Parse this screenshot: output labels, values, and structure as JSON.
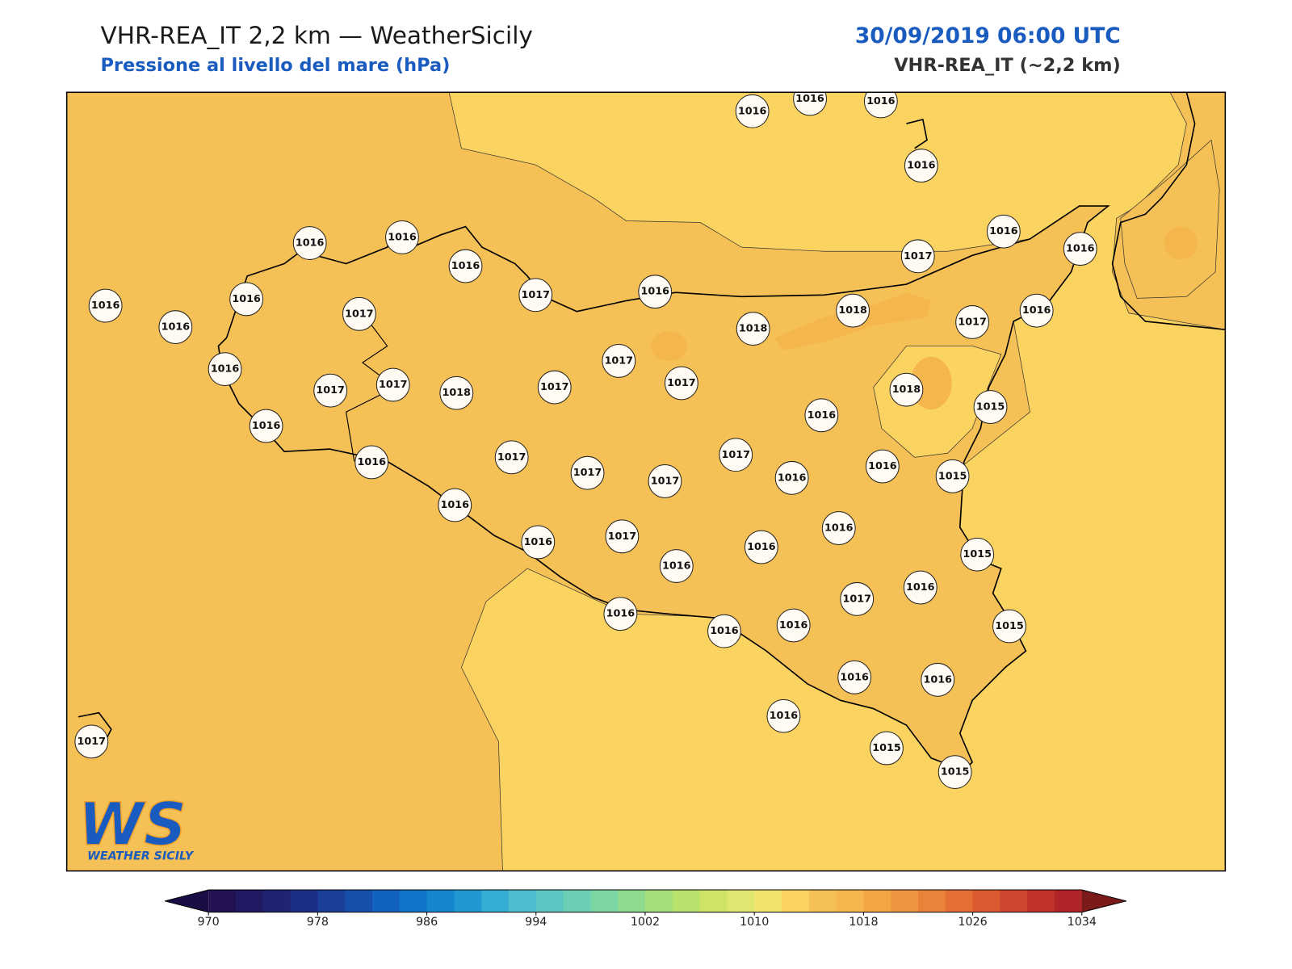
{
  "header": {
    "title": "VHR-REA_IT 2,2 km — WeatherSicily",
    "subtitle": "Pressione al livello del mare (hPa)",
    "datetime": "30/09/2019 06:00 UTC",
    "model": "VHR-REA_IT (~2,2 km)"
  },
  "map": {
    "stations": [
      1016,
      1016,
      1016,
      1016,
      1016,
      1016,
      1016,
      1017,
      1016,
      1016,
      1016,
      1017,
      1016,
      1016,
      1016,
      1017,
      1018,
      1018,
      1017,
      1016,
      1016,
      1017,
      1017,
      1018,
      1017,
      1017,
      1017,
      1018,
      1015,
      1016,
      1016,
      1016,
      1017,
      1017,
      1017,
      1017,
      1016,
      1016,
      1015,
      1016,
      1016,
      1017,
      1016,
      1016,
      1016,
      1015,
      1017,
      1016,
      1016,
      1016,
      1016,
      1015,
      1016,
      1016,
      1016,
      1015,
      1015,
      1017
    ]
  },
  "colorbar": {
    "range": [
      970,
      1034
    ],
    "ticks": [
      970,
      978,
      986,
      994,
      1002,
      1010,
      1018,
      1026,
      1034
    ],
    "colors": [
      "#231151",
      "#1f1a63",
      "#1e2372",
      "#1c2f86",
      "#1a3f99",
      "#1650ad",
      "#1262bf",
      "#1074c9",
      "#1786cf",
      "#2298d2",
      "#35acd4",
      "#4bbdcc",
      "#5cc6c3",
      "#6ccfb5",
      "#7bd6a3",
      "#8fdb8e",
      "#a4df7b",
      "#b8e26c",
      "#cde467",
      "#e0e770",
      "#f0e46e",
      "#fad361",
      "#f5c055",
      "#f5b64d",
      "#f2a645",
      "#ef9440",
      "#eb823a",
      "#e46e35",
      "#db5a30",
      "#cf452d",
      "#c1322b",
      "#b12528"
    ],
    "under_color": "#1a0d45",
    "over_color": "#7a1a1a"
  },
  "logo": {
    "initials": "WS",
    "name": "WEATHER SICILY"
  }
}
